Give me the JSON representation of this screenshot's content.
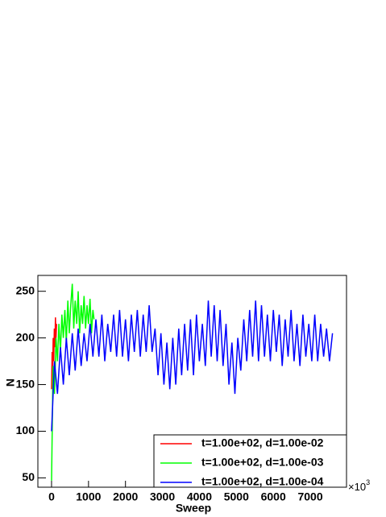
{
  "chart_data": {
    "type": "line",
    "xlabel": "Sweep",
    "ylabel": "N",
    "x_multiplier": {
      "base": "×10",
      "exponent": "3"
    },
    "xlim": [
      -370,
      7980
    ],
    "ylim": [
      40,
      267
    ],
    "xticks": [
      0,
      1000,
      2000,
      3000,
      4000,
      5000,
      6000,
      7000
    ],
    "yticks": [
      50,
      100,
      150,
      200,
      250
    ],
    "legend": "lower right",
    "series": [
      {
        "name": "t=1.00e+02, d=1.00e-02",
        "color": "#ff0000",
        "x": [
          0,
          15,
          30,
          45,
          60,
          75,
          90,
          105,
          120,
          135
        ],
        "values": [
          145,
          185,
          165,
          200,
          175,
          210,
          190,
          222,
          200,
          215
        ]
      },
      {
        "name": "t=1.00e+02, d=1.00e-03",
        "color": "#00ff00",
        "x": [
          0,
          40,
          80,
          120,
          160,
          200,
          240,
          280,
          320,
          360,
          400,
          440,
          480,
          520,
          560,
          600,
          640,
          680,
          720,
          760,
          800,
          840,
          880,
          920,
          960,
          1000,
          1040,
          1080,
          1120,
          1150
        ],
        "values": [
          47,
          170,
          140,
          200,
          175,
          215,
          185,
          225,
          200,
          230,
          195,
          240,
          205,
          235,
          258,
          210,
          240,
          215,
          250,
          205,
          235,
          215,
          245,
          210,
          235,
          215,
          242,
          205,
          230,
          220
        ]
      },
      {
        "name": "t=1.00e+02, d=1.00e-04",
        "color": "#0000ff",
        "x": [
          0,
          80,
          160,
          240,
          320,
          400,
          480,
          560,
          640,
          720,
          800,
          880,
          960,
          1040,
          1120,
          1200,
          1280,
          1360,
          1440,
          1520,
          1600,
          1680,
          1760,
          1840,
          1920,
          2000,
          2080,
          2160,
          2240,
          2320,
          2400,
          2480,
          2560,
          2640,
          2720,
          2800,
          2880,
          2960,
          3040,
          3120,
          3200,
          3280,
          3360,
          3440,
          3520,
          3600,
          3680,
          3760,
          3840,
          3920,
          4000,
          4080,
          4160,
          4240,
          4320,
          4400,
          4480,
          4560,
          4640,
          4720,
          4800,
          4880,
          4960,
          5040,
          5120,
          5200,
          5280,
          5360,
          5440,
          5520,
          5600,
          5680,
          5760,
          5840,
          5920,
          6000,
          6080,
          6160,
          6240,
          6320,
          6400,
          6480,
          6560,
          6640,
          6720,
          6800,
          6880,
          6960,
          7040,
          7120,
          7200,
          7280,
          7360,
          7440,
          7520,
          7600
        ],
        "values": [
          100,
          175,
          140,
          190,
          150,
          200,
          160,
          205,
          165,
          210,
          170,
          205,
          175,
          215,
          180,
          220,
          180,
          225,
          175,
          215,
          185,
          225,
          180,
          230,
          180,
          220,
          175,
          225,
          185,
          230,
          180,
          225,
          185,
          235,
          185,
          210,
          160,
          205,
          150,
          195,
          145,
          200,
          150,
          210,
          160,
          215,
          165,
          220,
          160,
          225,
          175,
          215,
          170,
          240,
          180,
          235,
          175,
          230,
          170,
          215,
          150,
          195,
          140,
          200,
          165,
          220,
          175,
          230,
          180,
          240,
          175,
          235,
          180,
          225,
          175,
          230,
          185,
          225,
          170,
          220,
          180,
          230,
          175,
          215,
          170,
          225,
          180,
          215,
          175,
          225,
          175,
          215,
          180,
          210,
          175,
          205
        ]
      }
    ]
  }
}
